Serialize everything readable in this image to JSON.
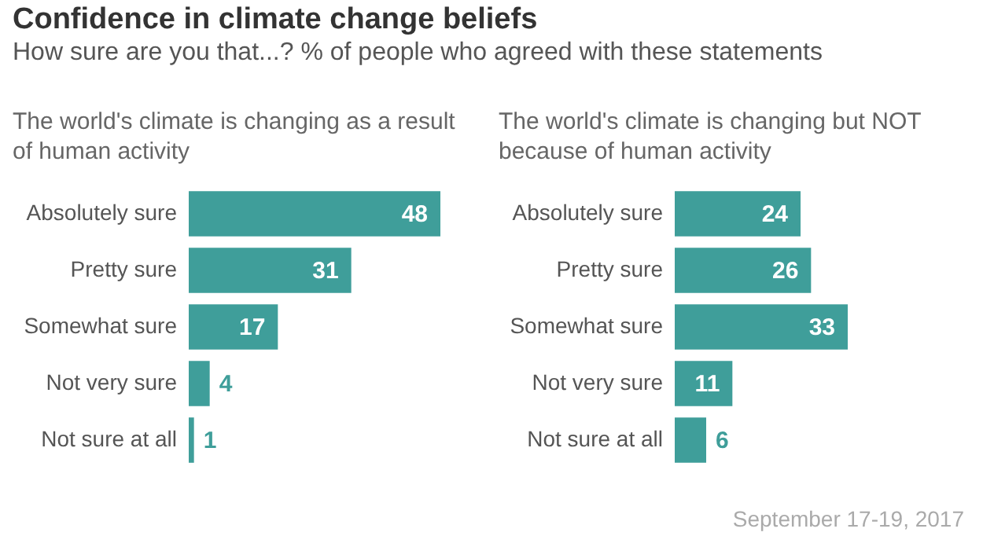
{
  "chart_data": [
    {
      "type": "other",
      "title": "Confidence in climate change beliefs",
      "subtitle": "How sure are you that...? % of people who agreed with these statements",
      "annotations": [
        "September 17-19, 2017"
      ]
    },
    {
      "type": "bar",
      "orientation": "horizontal",
      "title": "The world's climate is changing as a result of human activity",
      "categories": [
        "Absolutely sure",
        "Pretty sure",
        "Somewhat sure",
        "Not very sure",
        "Not sure at all"
      ],
      "values": [
        48,
        31,
        17,
        4,
        1
      ],
      "color": "#3f9e9a",
      "data_labels": true
    },
    {
      "type": "bar",
      "orientation": "horizontal",
      "title": "The world's climate is changing but NOT because of human activity",
      "categories": [
        "Absolutely sure",
        "Pretty sure",
        "Somewhat sure",
        "Not very sure",
        "Not sure at all"
      ],
      "values": [
        24,
        26,
        33,
        11,
        6
      ],
      "color": "#3f9e9a",
      "data_labels": true
    }
  ]
}
